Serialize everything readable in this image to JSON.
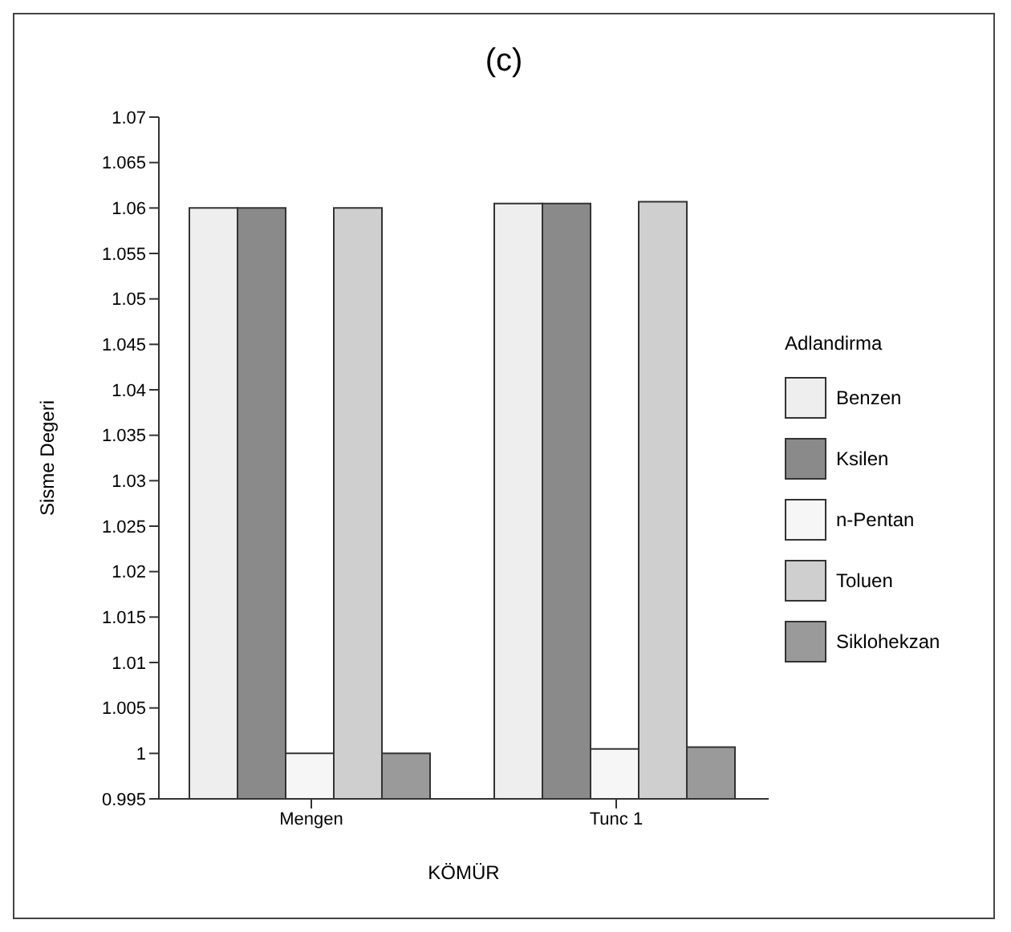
{
  "chart_data": {
    "type": "bar",
    "title": "(c)",
    "xlabel": "KÖMÜR",
    "ylabel": "Sisme Degeri",
    "legend_title": "Adlandirma",
    "categories": [
      "Mengen",
      "Tunc 1"
    ],
    "series": [
      {
        "name": "Benzen",
        "color": "#eeeeee",
        "values": [
          1.06,
          1.0605
        ]
      },
      {
        "name": "Ksilen",
        "color": "#8a8a8a",
        "values": [
          1.06,
          1.0605
        ]
      },
      {
        "name": "n-Pentan",
        "color": "#f6f6f6",
        "values": [
          1.0,
          1.0005
        ]
      },
      {
        "name": "Toluen",
        "color": "#cfcfcf",
        "values": [
          1.06,
          1.0607
        ]
      },
      {
        "name": "Siklohekzan",
        "color": "#9a9a9a",
        "values": [
          1.0,
          1.0007
        ]
      }
    ],
    "ylim": [
      0.995,
      1.07
    ],
    "yticks": [
      0.995,
      1,
      1.005,
      1.01,
      1.015,
      1.02,
      1.025,
      1.03,
      1.035,
      1.04,
      1.045,
      1.05,
      1.055,
      1.06,
      1.065,
      1.07
    ],
    "grid": false,
    "legend": "right"
  }
}
